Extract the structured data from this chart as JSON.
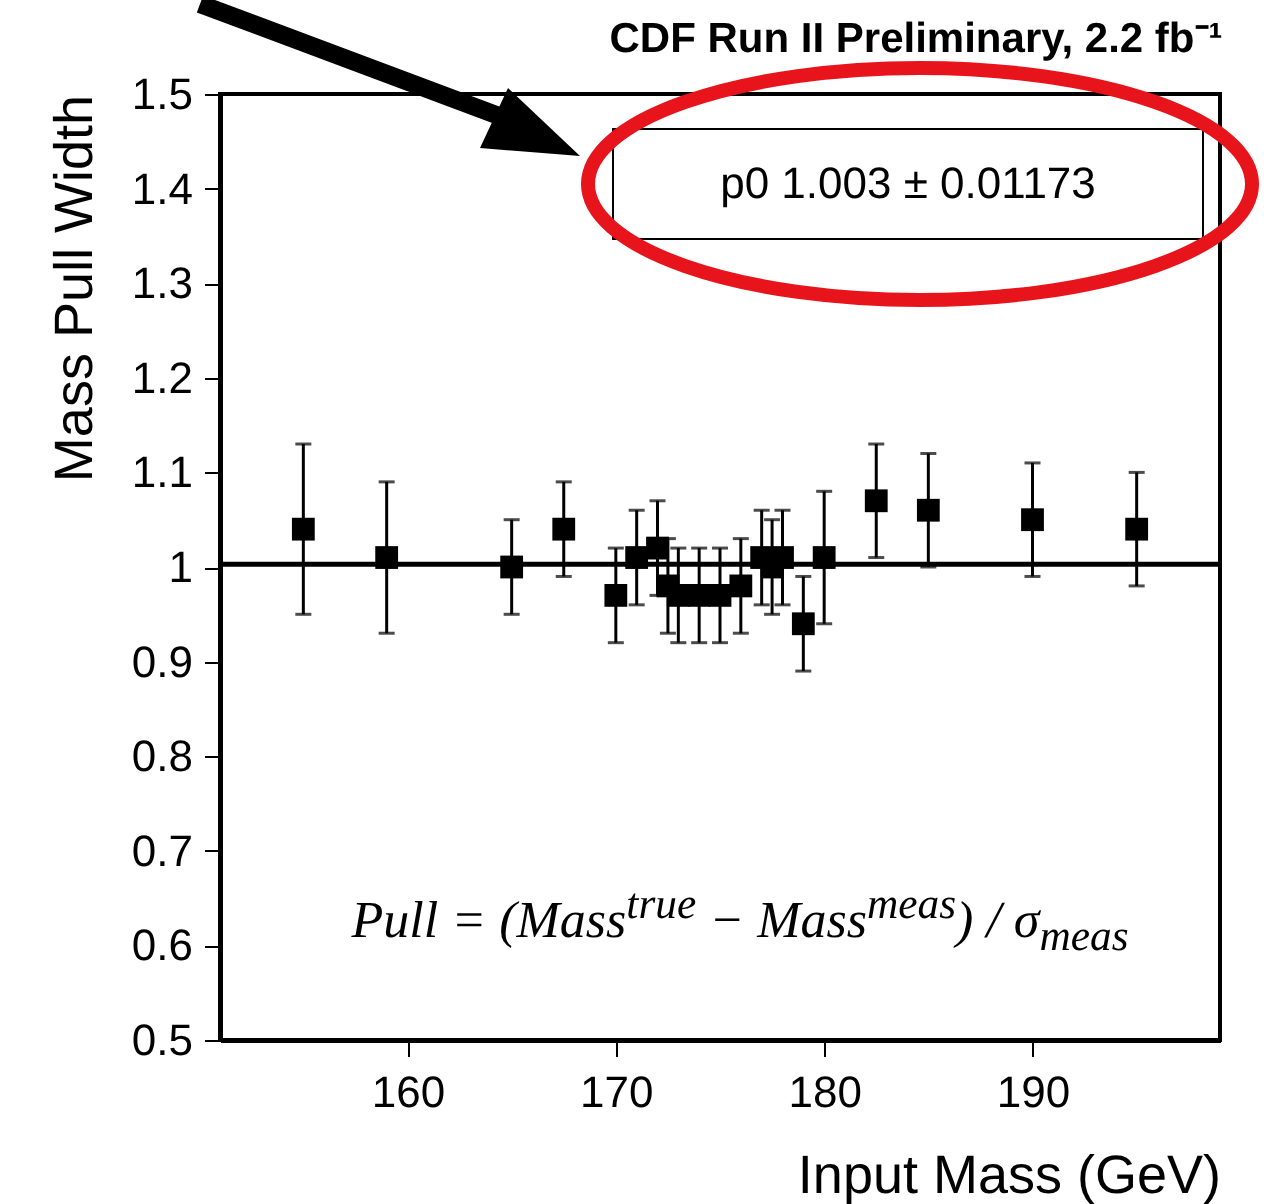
{
  "chart_data": {
    "type": "scatter",
    "title": "CDF Run II Preliminary, 2.2 fb⁻¹",
    "xlabel": "Input Mass (GeV)",
    "ylabel": "Mass Pull Width",
    "x": [
      155,
      159,
      165,
      167.5,
      170,
      171,
      172,
      172.5,
      173,
      174,
      175,
      176,
      177,
      177.5,
      178,
      179,
      180,
      182.5,
      185,
      190,
      195
    ],
    "series": [
      {
        "color": "#000000",
        "values": [
          1.04,
          1.01,
          1.0,
          1.04,
          0.97,
          1.01,
          1.02,
          0.98,
          0.97,
          0.97,
          0.97,
          0.98,
          1.01,
          1.0,
          1.01,
          0.94,
          1.01,
          1.07,
          1.06,
          1.05,
          1.04
        ],
        "errors": [
          0.09,
          0.08,
          0.05,
          0.05,
          0.05,
          0.05,
          0.05,
          0.05,
          0.05,
          0.05,
          0.05,
          0.05,
          0.05,
          0.05,
          0.05,
          0.05,
          0.07,
          0.06,
          0.06,
          0.06,
          0.06
        ]
      }
    ],
    "marker": "square",
    "xlim": [
      151,
      199
    ],
    "xticks": [
      160,
      170,
      180,
      190
    ],
    "ylim": [
      0.5,
      1.5
    ],
    "yticks": [
      0.5,
      0.6,
      0.7,
      0.8,
      0.9,
      1,
      1.1,
      1.2,
      1.3,
      1.4,
      1.5
    ],
    "ref_lines": [
      {
        "axis": "y",
        "value": 1.003,
        "color": "#000000"
      }
    ],
    "annotations": [
      "p0 1.003 ± 0.01173",
      "Pull = (Mass$^{true}$ − Mass$^{meas}$) / σ$_{meas}$"
    ],
    "grid": false,
    "legend": false
  }
}
